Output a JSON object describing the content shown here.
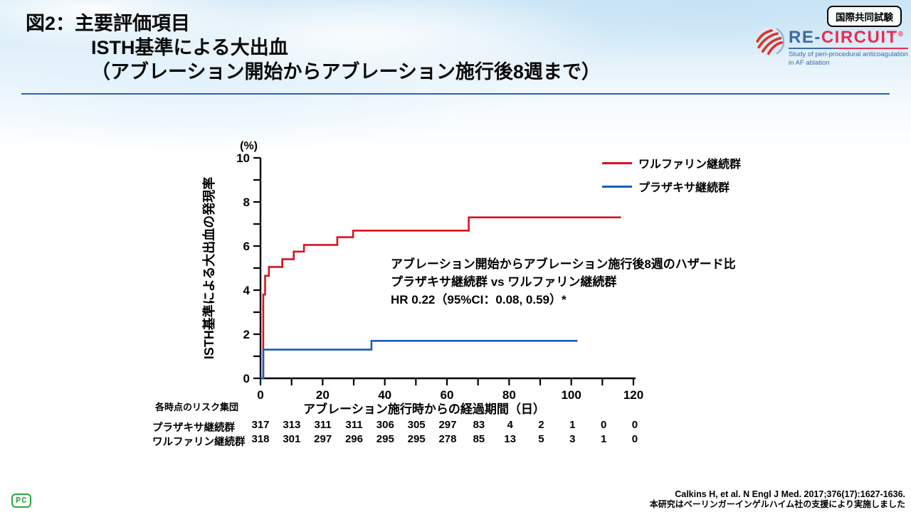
{
  "header": {
    "title_line1": "図2：主要評価項目",
    "title_line2": "ISTH基準による大出血",
    "title_line3": "（アブレーション開始からアブレーション施行後8週まで）",
    "badge": "国際共同試験"
  },
  "logo": {
    "name_left": "RE-",
    "name_right": "CIRCUIT",
    "registered": "®",
    "subtitle_line1": "Study of peri-procedural anticoagulation",
    "subtitle_line2": "in AF ablation"
  },
  "chart_data": {
    "type": "line",
    "subtype": "step-cumulative-incidence",
    "unit_label": "(%)",
    "ylabel": "ISTH基準による大出血の発現率",
    "xlabel": "アブレーション施行時からの経過期間（日）",
    "xlim": [
      0,
      120
    ],
    "ylim": [
      0,
      10
    ],
    "x_major_step": 20,
    "x_minor_step": 10,
    "y_major_step": 2,
    "y_minor_step": 1,
    "grid": false,
    "legend_position": "top-right",
    "series": [
      {
        "name": "ワルファリン継続群",
        "color": "#d6151f",
        "points": [
          [
            0,
            0
          ],
          [
            0.9,
            0
          ],
          [
            0.9,
            3.8
          ],
          [
            1.5,
            3.8
          ],
          [
            1.5,
            4.65
          ],
          [
            2.7,
            4.65
          ],
          [
            2.7,
            5.05
          ],
          [
            7,
            5.05
          ],
          [
            7,
            5.4
          ],
          [
            10.7,
            5.4
          ],
          [
            10.7,
            5.75
          ],
          [
            14,
            5.75
          ],
          [
            14,
            6.05
          ],
          [
            24.7,
            6.05
          ],
          [
            24.7,
            6.4
          ],
          [
            29.8,
            6.4
          ],
          [
            29.8,
            6.7
          ],
          [
            67,
            6.7
          ],
          [
            67,
            7.3
          ],
          [
            116,
            7.3
          ]
        ]
      },
      {
        "name": "プラザキサ継続群",
        "color": "#1b5cbe",
        "points": [
          [
            0,
            0
          ],
          [
            0.9,
            0
          ],
          [
            0.9,
            1.3
          ],
          [
            35.7,
            1.3
          ],
          [
            35.7,
            1.7
          ],
          [
            102,
            1.7
          ]
        ]
      }
    ]
  },
  "annotation": {
    "line1": "アブレーション開始からアブレーション施行後8週のハザード比",
    "line2": "プラザキサ継続群 vs ワルファリン継続群",
    "line3": "HR 0.22（95%CI：0.08, 0.59）*"
  },
  "risk_table": {
    "title": "各時点のリスク集団",
    "timepoints": [
      0,
      10,
      20,
      30,
      40,
      50,
      60,
      70,
      80,
      90,
      100,
      110,
      120
    ],
    "rows": [
      {
        "label": "プラザキサ継続群",
        "values": [
          317,
          313,
          311,
          311,
          306,
          305,
          297,
          83,
          4,
          2,
          1,
          0,
          0
        ]
      },
      {
        "label": "ワルファリン継続群",
        "values": [
          318,
          301,
          297,
          296,
          295,
          295,
          278,
          85,
          13,
          5,
          3,
          1,
          0
        ]
      }
    ]
  },
  "footer": {
    "citation": "Calkins H, et al. N Engl J Med. 2017;376(17):1627-1636.",
    "support": "本研究はベーリンガーインゲルハイム社の支援により実施しました",
    "pc_mark": "PC"
  },
  "colors": {
    "warfarin_red": "#d6151f",
    "prazaxa_blue": "#1b5cbe",
    "header_rule_blue": "#2f62ae",
    "logo_blue": "#3c6aa6",
    "logo_red": "#e62e54",
    "pc_green": "#2ba63c"
  }
}
